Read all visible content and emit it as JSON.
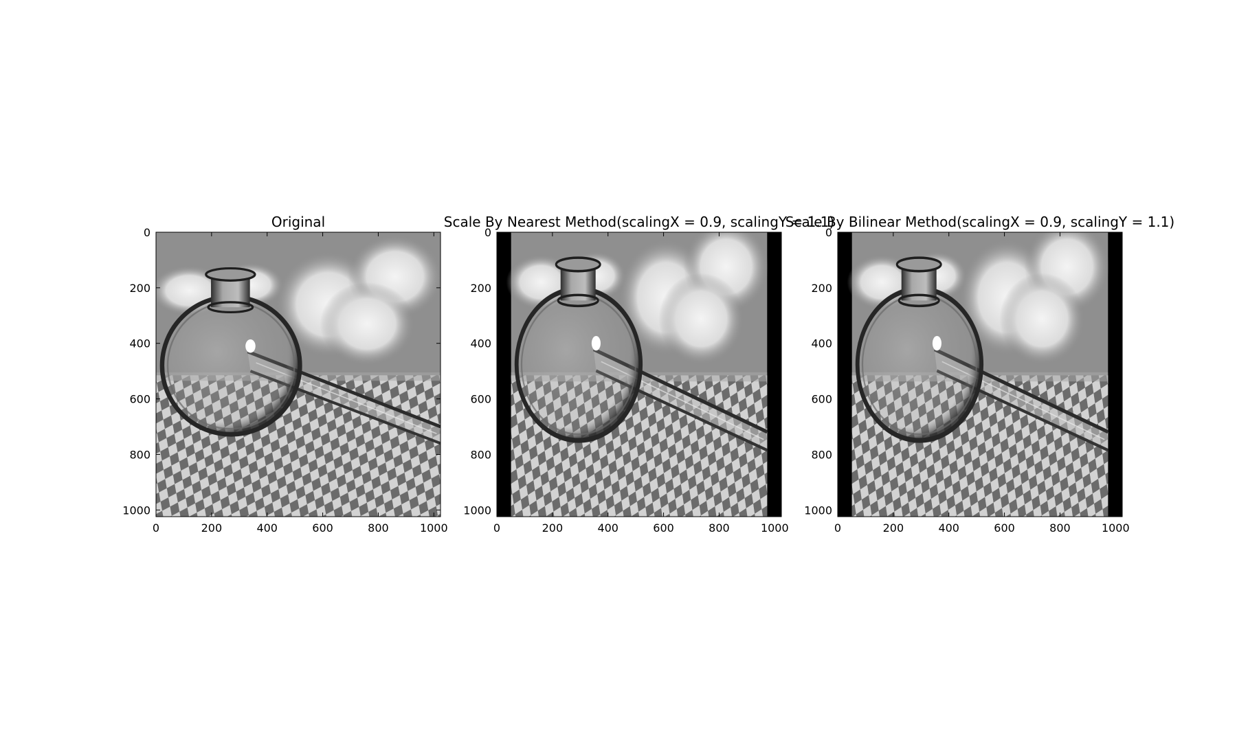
{
  "figure": {
    "background": "#ffffff"
  },
  "chart_data": [
    {
      "type": "image",
      "title": "Original",
      "xlim": [
        0,
        1024
      ],
      "ylim": [
        1024,
        0
      ],
      "xticks": [
        0,
        200,
        400,
        600,
        800,
        1000
      ],
      "yticks": [
        0,
        200,
        400,
        600,
        800,
        1000
      ],
      "image": {
        "colormap": "gray",
        "scalingX": 1.0,
        "scalingY": 1.0,
        "description": "glass flask on checkerboard floor, cloudy sky"
      }
    },
    {
      "type": "image",
      "title": "Scale By Nearest Method(scalingX = 0.9, scalingY = 1.1)",
      "xlim": [
        0,
        1024
      ],
      "ylim": [
        1024,
        0
      ],
      "xticks": [
        0,
        200,
        400,
        600,
        800,
        1000
      ],
      "yticks": [
        0,
        200,
        400,
        600,
        800,
        1000
      ],
      "image": {
        "colormap": "gray",
        "scalingX": 0.9,
        "scalingY": 1.1,
        "method": "nearest"
      }
    },
    {
      "type": "image",
      "title": "Scale By Bilinear Method(scalingX = 0.9, scalingY = 1.1)",
      "xlim": [
        0,
        1024
      ],
      "ylim": [
        1024,
        0
      ],
      "xticks": [
        0,
        200,
        400,
        600,
        800,
        1000
      ],
      "yticks": [
        0,
        200,
        400,
        600,
        800,
        1000
      ],
      "image": {
        "colormap": "gray",
        "scalingX": 0.9,
        "scalingY": 1.1,
        "method": "bilinear"
      }
    }
  ]
}
